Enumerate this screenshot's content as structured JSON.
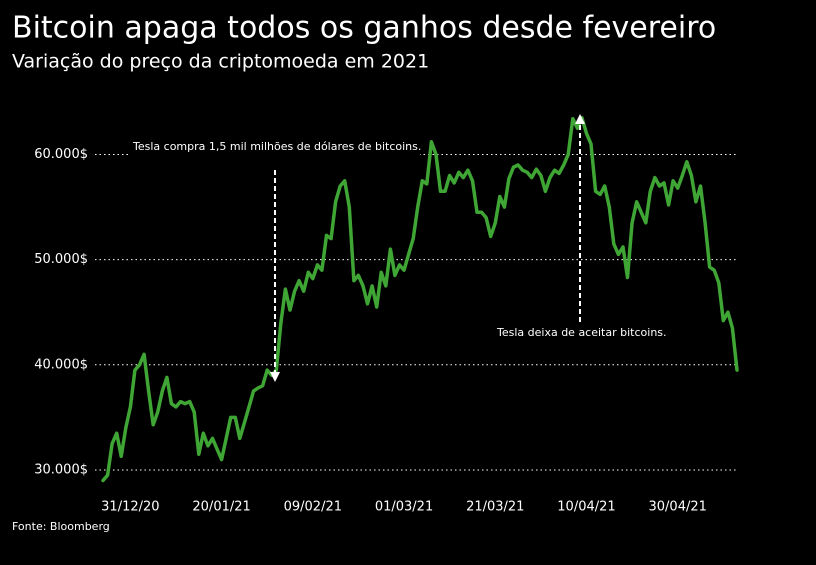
{
  "chart_data": {
    "type": "line",
    "title": "Bitcoin apaga todos os ganhos desde fevereiro",
    "subtitle": "Variação do preço da criptomoeda em 2021",
    "source": "Fonte: Bloomberg",
    "annotations": [
      {
        "text": "Tesla compra 1,5 mil milhões de dólares de bitcoins."
      },
      {
        "text": "Tesla deixa de aceitar bitcoins."
      }
    ],
    "color": "#3fa535",
    "grid": true,
    "ylim": [
      28800,
      64000
    ],
    "yticks": [
      {
        "value": 30000,
        "label": "30.000$"
      },
      {
        "value": 40000,
        "label": "40.000$"
      },
      {
        "value": 50000,
        "label": "50.000$"
      },
      {
        "value": 60000,
        "label": "60.000$"
      }
    ],
    "categories": [
      null,
      null,
      null,
      null,
      null,
      null,
      "31/12/20",
      null,
      null,
      null,
      null,
      null,
      null,
      null,
      null,
      null,
      null,
      null,
      null,
      null,
      null,
      null,
      null,
      null,
      null,
      null,
      "20/01/21",
      null,
      null,
      null,
      null,
      null,
      null,
      null,
      null,
      null,
      null,
      null,
      null,
      null,
      null,
      null,
      null,
      null,
      null,
      null,
      "09/02/21",
      null,
      null,
      null,
      null,
      null,
      null,
      null,
      null,
      null,
      null,
      null,
      null,
      null,
      null,
      null,
      null,
      null,
      null,
      null,
      "01/03/21",
      null,
      null,
      null,
      null,
      null,
      null,
      null,
      null,
      null,
      null,
      null,
      null,
      null,
      null,
      null,
      null,
      null,
      null,
      null,
      "21/03/21",
      null,
      null,
      null,
      null,
      null,
      null,
      null,
      null,
      null,
      null,
      null,
      null,
      null,
      null,
      null,
      null,
      null,
      null,
      null,
      "10/04/21",
      null,
      null,
      null,
      null,
      null,
      null,
      null,
      null,
      null,
      null,
      null,
      null,
      null,
      null,
      null,
      null,
      null,
      null,
      null,
      "30/04/21",
      null,
      null,
      null,
      null,
      null,
      null,
      null,
      null,
      null,
      null,
      null,
      null,
      null
    ],
    "values": [
      29000,
      29500,
      32500,
      33500,
      31300,
      34000,
      36000,
      39500,
      40000,
      41000,
      37500,
      34300,
      35500,
      37500,
      38800,
      36300,
      36000,
      36500,
      36300,
      36500,
      35500,
      31500,
      33500,
      32300,
      33000,
      32000,
      31000,
      33000,
      35000,
      35000,
      33000,
      34500,
      36000,
      37500,
      37800,
      38000,
      39500,
      39000,
      39500,
      44000,
      47200,
      45200,
      47000,
      48000,
      47000,
      48800,
      48200,
      49500,
      49000,
      52300,
      52000,
      55500,
      57000,
      57500,
      55000,
      48000,
      48500,
      47500,
      45800,
      47500,
      45500,
      48800,
      47500,
      51000,
      48500,
      49500,
      49000,
      50500,
      52000,
      55000,
      57500,
      57200,
      61200,
      60000,
      56500,
      56500,
      58000,
      57300,
      58300,
      57800,
      58500,
      57500,
      54500,
      54500,
      54000,
      52200,
      53500,
      56000,
      55000,
      57700,
      58800,
      59000,
      58500,
      58300,
      57800,
      58600,
      58000,
      56500,
      57800,
      58500,
      58200,
      59000,
      60000,
      63400,
      62500,
      63500,
      62000,
      61000,
      56500,
      56200,
      57000,
      55000,
      51500,
      50500,
      51200,
      48300,
      53500,
      55500,
      54500,
      53500,
      56500,
      57800,
      57000,
      57300,
      55200,
      57500,
      56800,
      58000,
      59300,
      58000,
      55500,
      57000,
      53500,
      49300,
      49000,
      47800,
      44200,
      45000,
      43500,
      39500
    ]
  }
}
